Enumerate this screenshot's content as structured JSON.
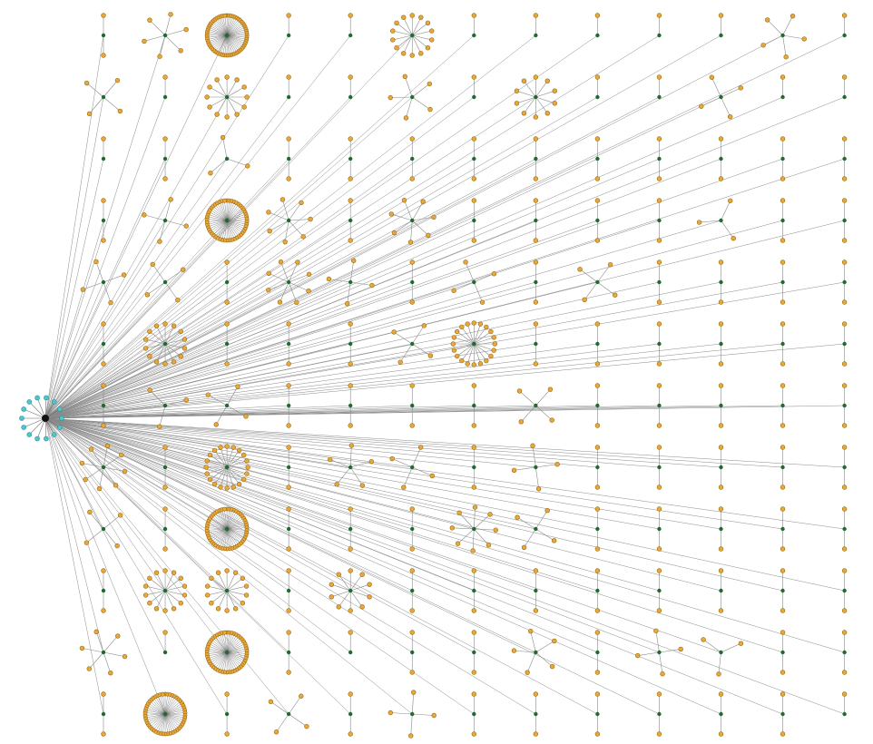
{
  "diagram": {
    "type": "network",
    "colors": {
      "background": "#ffffff",
      "edge": "#8a8a8a",
      "hub_edge": "#6f6f6f",
      "hub_node": "#111111",
      "hub_ring_node": "#4fc7cf",
      "cluster_center": "#1f6b2e",
      "leaf_node": "#e8a83c",
      "leaf_stroke": "#9a6a10"
    },
    "hub_ring_count": 14,
    "grid": {
      "columns": 13,
      "rows": 12
    },
    "clusters_by_row": [
      [
        2,
        6,
        60,
        1,
        1,
        14,
        1,
        1,
        1,
        1,
        1,
        5,
        1
      ],
      [
        4,
        1,
        12,
        1,
        1,
        5,
        1,
        10,
        1,
        1,
        4,
        1,
        1
      ],
      [
        1,
        2,
        3,
        2,
        2,
        2,
        2,
        2,
        2,
        2,
        2,
        2,
        2
      ],
      [
        2,
        4,
        50,
        7,
        2,
        7,
        2,
        2,
        2,
        2,
        3,
        2,
        2
      ],
      [
        4,
        4,
        2,
        8,
        4,
        2,
        4,
        2,
        4,
        2,
        2,
        2,
        2
      ],
      [
        2,
        14,
        2,
        2,
        2,
        4,
        20,
        2,
        2,
        2,
        2,
        2,
        2
      ],
      [
        2,
        3,
        4,
        2,
        2,
        2,
        2,
        4,
        2,
        2,
        2,
        2,
        2
      ],
      [
        8,
        2,
        20,
        2,
        5,
        4,
        2,
        4,
        2,
        2,
        2,
        2,
        2
      ],
      [
        4,
        2,
        50,
        2,
        2,
        2,
        8,
        4,
        2,
        2,
        2,
        2,
        2
      ],
      [
        2,
        14,
        14,
        2,
        10,
        2,
        2,
        2,
        2,
        2,
        2,
        2,
        2
      ],
      [
        6,
        1,
        50,
        2,
        1,
        2,
        2,
        5,
        2,
        4,
        3,
        2,
        2
      ],
      [
        2,
        50,
        2,
        4,
        2,
        4,
        2,
        2,
        2,
        2,
        2,
        2,
        1
      ]
    ]
  }
}
